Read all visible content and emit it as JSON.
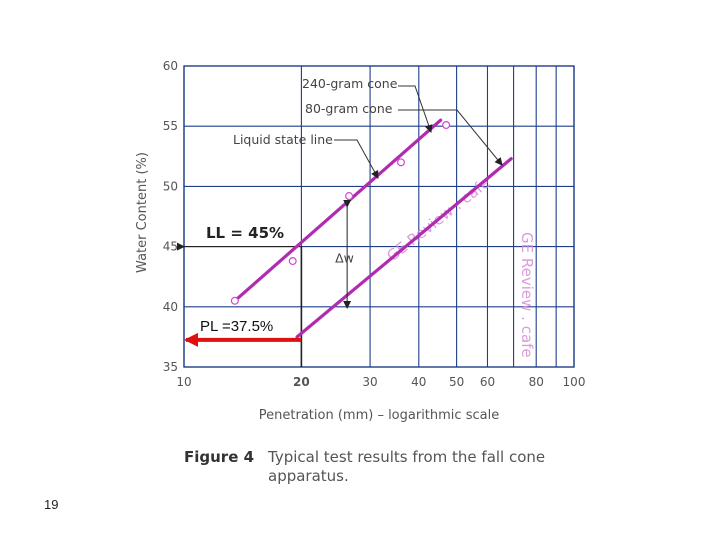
{
  "chart_data": {
    "type": "line",
    "title": "",
    "xlabel": "Penetration (mm) – logarithmic scale",
    "ylabel": "Water Content (%)",
    "x_scale": "log",
    "xlim": [
      10,
      100
    ],
    "ylim": [
      35,
      60
    ],
    "x_ticks": [
      {
        "value": 10,
        "label": "10",
        "bold": false
      },
      {
        "value": 20,
        "label": "20",
        "bold": true
      },
      {
        "value": 30,
        "label": "30",
        "bold": false
      },
      {
        "value": 40,
        "label": "40",
        "bold": false
      },
      {
        "value": 50,
        "label": "50",
        "bold": false
      },
      {
        "value": 60,
        "label": "60",
        "bold": false
      },
      {
        "value": 80,
        "label": "80",
        "bold": false
      },
      {
        "value": 100,
        "label": "100",
        "bold": false
      }
    ],
    "x_gridlines": [
      10,
      20,
      30,
      40,
      50,
      60,
      70,
      80,
      90,
      100
    ],
    "y_ticks": [
      35,
      40,
      45,
      50,
      55,
      60
    ],
    "grid": true,
    "series": [
      {
        "name": "240-gram cone",
        "color": "#b02bb0",
        "line": {
          "x": [
            13.5,
            45.5
          ],
          "y": [
            40.5,
            55.5
          ]
        },
        "points": {
          "x": [
            13.5,
            19,
            26.5,
            36,
            47
          ],
          "y": [
            40.5,
            43.8,
            49.2,
            52,
            55.1
          ]
        }
      },
      {
        "name": "80-gram cone",
        "color": "#b02bb0",
        "line": {
          "x": [
            19.5,
            69
          ],
          "y": [
            37.5,
            52.3
          ]
        },
        "points": {
          "x": [],
          "y": []
        }
      }
    ],
    "annotations": {
      "cone_240_label": "240-gram cone",
      "cone_80_label": "80-gram cone",
      "liquid_state_label": "Liquid state line",
      "ll_label": "LL = 45%",
      "ll_value": 45,
      "ll_x": 20,
      "pl_label": "PL =37.5%",
      "pl_value": 37.5,
      "pl_x": 20,
      "delta_w_label": "Δw",
      "pl_arrow_color": "#e01010"
    },
    "watermarks": [
      "GE Review . cafe",
      "GE Review . cafe"
    ],
    "caption": {
      "label": "Figure 4",
      "text_line1": "Typical test results from the fall cone",
      "text_line2": "apparatus."
    }
  },
  "page": {
    "number": "19"
  }
}
